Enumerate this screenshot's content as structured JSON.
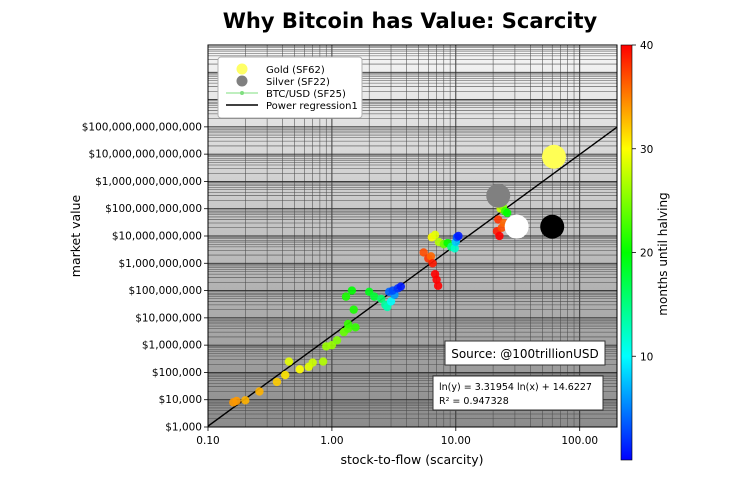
{
  "chart_data": {
    "type": "scatter",
    "title": "Why Bitcoin has Value: Scarcity",
    "xlabel": "stock-to-flow (scarcity)",
    "ylabel": "market value",
    "x_scale": "log",
    "y_scale": "log",
    "xlim": [
      0.1,
      200
    ],
    "ylim": [
      1000,
      100000000000000000
    ],
    "x_ticks": [
      {
        "value": 0.1,
        "label": "0.10"
      },
      {
        "value": 1,
        "label": "1.00"
      },
      {
        "value": 10,
        "label": "10.00"
      },
      {
        "value": 100,
        "label": "100.00"
      }
    ],
    "y_ticks": [
      {
        "value": 1000,
        "label": "$1,000"
      },
      {
        "value": 10000,
        "label": "$10,000"
      },
      {
        "value": 100000,
        "label": "$100,000"
      },
      {
        "value": 1000000,
        "label": "$1,000,000"
      },
      {
        "value": 10000000,
        "label": "$10,000,000"
      },
      {
        "value": 100000000,
        "label": "$100,000,000"
      },
      {
        "value": 1000000000,
        "label": "$1,000,000,000"
      },
      {
        "value": 10000000000,
        "label": "$10,000,000,000"
      },
      {
        "value": 100000000000,
        "label": "$100,000,000,000"
      },
      {
        "value": 1000000000000,
        "label": "$1,000,000,000,000"
      },
      {
        "value": 10000000000000,
        "label": "$10,000,000,000,000"
      },
      {
        "value": 100000000000000,
        "label": "$100,000,000,000,000"
      }
    ],
    "grid": true,
    "legend_position": "top-left",
    "legend": [
      {
        "label": "Gold (SF62)",
        "marker": "big-circle",
        "color": "#ffff66"
      },
      {
        "label": "Silver (SF22)",
        "marker": "big-circle",
        "color": "#808080"
      },
      {
        "label": "BTC/USD (SF25)",
        "marker": "line-dot",
        "color": "#7fdf7f"
      },
      {
        "label": "Power regression1",
        "marker": "line",
        "color": "#000000"
      }
    ],
    "regression": {
      "intercept": 14.6227,
      "slope": 3.31954
    },
    "equation_lines": [
      "ln(y) = 3.31954 ln(x) + 14.6227",
      "R² = 0.947328"
    ],
    "source_label": "Source: @100trillionUSD",
    "colorbar": {
      "label": "months until halving",
      "min": 0,
      "max": 40,
      "ticks": [
        10,
        20,
        30,
        40
      ],
      "colors": [
        "#0000ff",
        "#00ffff",
        "#00ff00",
        "#ffff00",
        "#ff0000"
      ]
    },
    "highlight_points": [
      {
        "name": "gold",
        "x": 62,
        "y": 8000000000000,
        "color": "#ffff55"
      },
      {
        "name": "silver",
        "x": 22,
        "y": 300000000000,
        "color": "#808080"
      },
      {
        "name": "btc-sf25-white",
        "x": 31,
        "y": 22000000000,
        "color": "#ffffff"
      },
      {
        "name": "btc-black",
        "x": 60,
        "y": 22000000000,
        "color": "#000000"
      }
    ],
    "points": [
      {
        "x": 0.16,
        "y": 8000,
        "m": 34
      },
      {
        "x": 0.17,
        "y": 9000,
        "m": 34
      },
      {
        "x": 0.2,
        "y": 9500,
        "m": 33
      },
      {
        "x": 0.26,
        "y": 20000,
        "m": 33
      },
      {
        "x": 0.36,
        "y": 45000,
        "m": 32
      },
      {
        "x": 0.42,
        "y": 80000,
        "m": 31
      },
      {
        "x": 0.45,
        "y": 250000,
        "m": 29
      },
      {
        "x": 0.55,
        "y": 130000,
        "m": 30
      },
      {
        "x": 0.65,
        "y": 160000,
        "m": 29
      },
      {
        "x": 0.7,
        "y": 230000,
        "m": 28
      },
      {
        "x": 0.85,
        "y": 250000,
        "m": 27
      },
      {
        "x": 0.9,
        "y": 900000,
        "m": 26
      },
      {
        "x": 1.0,
        "y": 1000000,
        "m": 26
      },
      {
        "x": 1.1,
        "y": 1500000,
        "m": 25
      },
      {
        "x": 1.25,
        "y": 3000000,
        "m": 24
      },
      {
        "x": 1.35,
        "y": 4000000,
        "m": 23
      },
      {
        "x": 1.55,
        "y": 4500000,
        "m": 22
      },
      {
        "x": 1.35,
        "y": 6000000,
        "m": 22
      },
      {
        "x": 1.5,
        "y": 20000000,
        "m": 21
      },
      {
        "x": 1.3,
        "y": 60000000,
        "m": 21
      },
      {
        "x": 1.45,
        "y": 100000000,
        "m": 20
      },
      {
        "x": 2.0,
        "y": 90000000,
        "m": 19
      },
      {
        "x": 2.2,
        "y": 60000000,
        "m": 18
      },
      {
        "x": 2.5,
        "y": 50000000,
        "m": 16
      },
      {
        "x": 2.7,
        "y": 30000000,
        "m": 14
      },
      {
        "x": 2.8,
        "y": 25000000,
        "m": 13
      },
      {
        "x": 3.0,
        "y": 40000000,
        "m": 10
      },
      {
        "x": 3.2,
        "y": 70000000,
        "m": 6
      },
      {
        "x": 2.9,
        "y": 90000000,
        "m": 4
      },
      {
        "x": 3.1,
        "y": 100000000,
        "m": 3
      },
      {
        "x": 3.4,
        "y": 120000000,
        "m": 2
      },
      {
        "x": 3.6,
        "y": 140000000,
        "m": 1
      },
      {
        "x": 5.5,
        "y": 2500000000,
        "m": 37
      },
      {
        "x": 6.0,
        "y": 1500000000,
        "m": 38
      },
      {
        "x": 6.3,
        "y": 1800000000,
        "m": 36
      },
      {
        "x": 6.5,
        "y": 1000000000,
        "m": 39
      },
      {
        "x": 6.8,
        "y": 400000000,
        "m": 40
      },
      {
        "x": 7.0,
        "y": 250000000,
        "m": 40
      },
      {
        "x": 7.2,
        "y": 150000000,
        "m": 40
      },
      {
        "x": 6.4,
        "y": 9000000000,
        "m": 30
      },
      {
        "x": 6.8,
        "y": 11000000000,
        "m": 29
      },
      {
        "x": 7.3,
        "y": 6000000000,
        "m": 27
      },
      {
        "x": 8.0,
        "y": 5000000000,
        "m": 24
      },
      {
        "x": 8.6,
        "y": 5500000000,
        "m": 20
      },
      {
        "x": 9.2,
        "y": 4000000000,
        "m": 15
      },
      {
        "x": 9.8,
        "y": 3500000000,
        "m": 12
      },
      {
        "x": 10.0,
        "y": 6000000000,
        "m": 8
      },
      {
        "x": 10.2,
        "y": 9000000000,
        "m": 3
      },
      {
        "x": 10.5,
        "y": 10000000000,
        "m": 1
      },
      {
        "x": 21.0,
        "y": 200000000000,
        "m": 34
      },
      {
        "x": 22.0,
        "y": 150000000000,
        "m": 32
      },
      {
        "x": 23.0,
        "y": 100000000000,
        "m": 28
      },
      {
        "x": 24.0,
        "y": 120000000000,
        "m": 25
      },
      {
        "x": 25.0,
        "y": 80000000000,
        "m": 22
      },
      {
        "x": 26.0,
        "y": 70000000000,
        "m": 20
      },
      {
        "x": 22.0,
        "y": 40000000000,
        "m": 38
      },
      {
        "x": 21.5,
        "y": 15000000000,
        "m": 39
      },
      {
        "x": 22.5,
        "y": 10000000000,
        "m": 40
      },
      {
        "x": 23.5,
        "y": 20000000000,
        "m": 37
      },
      {
        "x": 24.5,
        "y": 30000000000,
        "m": 36
      }
    ]
  }
}
